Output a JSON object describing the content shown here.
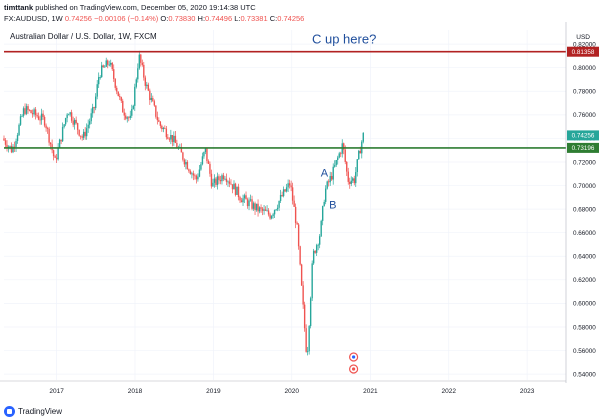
{
  "header": {
    "author": "timttank",
    "published": "published on TradingView.com, December 05, 2020 19:14:38 UTC"
  },
  "symbol_bar": {
    "symbol": "FX:AUDUSD, 1W",
    "last": "0.74256",
    "change": "−0.00106 (−0.14%)",
    "o_label": "O:",
    "o": "0.73830",
    "h_label": "H:",
    "h": "0.74496",
    "l_label": "L:",
    "l": "0.73381",
    "c_label": "C:",
    "c": "0.74256"
  },
  "footer": {
    "brand": "TradingView"
  },
  "chart_data": {
    "type": "candlestick",
    "title": "Australian Dollar / U.S. Dollar, 1W, FXCM",
    "currency": "USD",
    "y_ticks": [
      "0.82000",
      "0.80000",
      "0.78000",
      "0.76000",
      "0.74000",
      "0.72000",
      "0.70000",
      "0.68000",
      "0.66000",
      "0.64000",
      "0.62000",
      "0.60000",
      "0.58000",
      "0.56000",
      "0.54000"
    ],
    "x_ticks": [
      "2017",
      "2018",
      "2019",
      "2020",
      "2021",
      "2022",
      "2023"
    ],
    "ylim": [
      0.535,
      0.832
    ],
    "grid": true,
    "up_color": "#26a69a",
    "down_color": "#ef5350",
    "horizontal_lines": [
      {
        "value": 0.81358,
        "label": "0.81358",
        "color": "#b22222"
      },
      {
        "value": 0.73196,
        "label": "0.73196",
        "color": "#2e7d32"
      }
    ],
    "last_price_label": {
      "value": 0.74256,
      "label": "0.74256",
      "color": "#26a69a"
    },
    "annotations": [
      {
        "text": "C up here?",
        "date": "2020-09-01",
        "value": 0.8205,
        "color": "#1f4e9c"
      },
      {
        "text": "A",
        "date": "2020-06-01",
        "value": 0.7075,
        "color": "#1f4e9c"
      },
      {
        "text": "B",
        "date": "2020-07-10",
        "value": 0.6805,
        "color": "#1f4e9c"
      }
    ],
    "price_path": [
      [
        "2016-05-01",
        0.74
      ],
      [
        "2016-06-15",
        0.73
      ],
      [
        "2016-08-10",
        0.765
      ],
      [
        "2016-10-01",
        0.76
      ],
      [
        "2016-11-15",
        0.755
      ],
      [
        "2017-01-01",
        0.72
      ],
      [
        "2017-03-01",
        0.765
      ],
      [
        "2017-05-10",
        0.74
      ],
      [
        "2017-07-01",
        0.765
      ],
      [
        "2017-07-25",
        0.795
      ],
      [
        "2017-09-10",
        0.805
      ],
      [
        "2017-11-10",
        0.765
      ],
      [
        "2017-12-20",
        0.755
      ],
      [
        "2018-01-26",
        0.81
      ],
      [
        "2018-03-01",
        0.785
      ],
      [
        "2018-05-01",
        0.752
      ],
      [
        "2018-07-01",
        0.74
      ],
      [
        "2018-09-01",
        0.72
      ],
      [
        "2018-10-20",
        0.705
      ],
      [
        "2018-12-01",
        0.73
      ],
      [
        "2019-01-03",
        0.7
      ],
      [
        "2019-03-01",
        0.71
      ],
      [
        "2019-05-15",
        0.69
      ],
      [
        "2019-08-01",
        0.68
      ],
      [
        "2019-10-01",
        0.675
      ],
      [
        "2019-12-31",
        0.702
      ],
      [
        "2020-02-01",
        0.665
      ],
      [
        "2020-03-19",
        0.553
      ],
      [
        "2020-04-15",
        0.64
      ],
      [
        "2020-05-20",
        0.66
      ],
      [
        "2020-06-10",
        0.695
      ],
      [
        "2020-07-15",
        0.71
      ],
      [
        "2020-09-01",
        0.735
      ],
      [
        "2020-09-25",
        0.705
      ],
      [
        "2020-10-25",
        0.705
      ],
      [
        "2020-11-20",
        0.73
      ],
      [
        "2020-12-05",
        0.7425
      ]
    ]
  }
}
